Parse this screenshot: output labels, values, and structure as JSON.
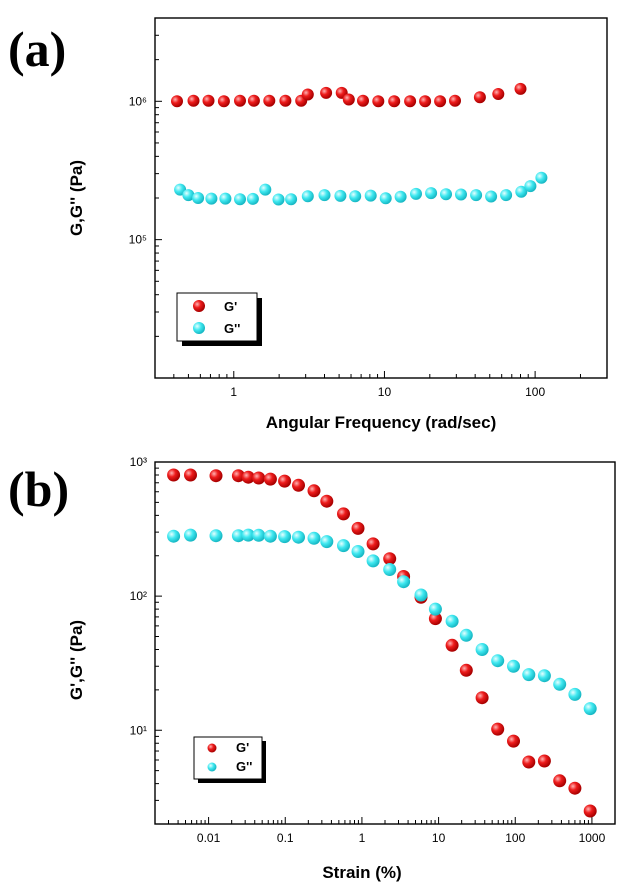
{
  "figure": {
    "panel_labels": [
      "(a)",
      "(b)"
    ]
  },
  "chart_data": [
    {
      "type": "scatter",
      "panel": "(a)",
      "xlabel": "Angular Frequency (rad/sec)",
      "ylabel": "G,G'' (Pa)",
      "xscale": "log",
      "yscale": "log",
      "xlim": [
        0.3,
        300
      ],
      "ylim": [
        10000,
        4000000
      ],
      "xticks": [
        {
          "value": 1,
          "label": "1"
        },
        {
          "value": 10,
          "label": "10"
        },
        {
          "value": 100,
          "label": "100"
        }
      ],
      "yticks": [
        {
          "value": 100000,
          "label": "10⁵"
        },
        {
          "value": 1000000,
          "label": "10⁶"
        }
      ],
      "grid": false,
      "legend_position": "bottom-left",
      "series": [
        {
          "name": "G'",
          "color": "#ee1c1c",
          "points": [
            [
              0.42,
              1000000
            ],
            [
              0.54,
              1010000
            ],
            [
              0.68,
              1010000
            ],
            [
              0.86,
              1000000
            ],
            [
              1.1,
              1010000
            ],
            [
              1.36,
              1010000
            ],
            [
              1.72,
              1010000
            ],
            [
              2.2,
              1010000
            ],
            [
              2.8,
              1010000
            ],
            [
              3.1,
              1120000
            ],
            [
              4.1,
              1150000
            ],
            [
              5.2,
              1150000
            ],
            [
              5.8,
              1030000
            ],
            [
              7.2,
              1010000
            ],
            [
              9.1,
              1000000
            ],
            [
              11.6,
              1000000
            ],
            [
              14.8,
              1000000
            ],
            [
              18.6,
              1000000
            ],
            [
              23.4,
              1000000
            ],
            [
              29.4,
              1010000
            ],
            [
              43,
              1070000
            ],
            [
              57,
              1130000
            ],
            [
              80,
              1230000
            ]
          ]
        },
        {
          "name": "G''",
          "color": "#3fe8f0",
          "points": [
            [
              0.44,
              230000
            ],
            [
              0.5,
              210000
            ],
            [
              0.58,
              200000
            ],
            [
              0.71,
              198000
            ],
            [
              0.88,
              198000
            ],
            [
              1.1,
              196000
            ],
            [
              1.34,
              197000
            ],
            [
              1.62,
              230000
            ],
            [
              1.98,
              195000
            ],
            [
              2.4,
              196000
            ],
            [
              3.1,
              206000
            ],
            [
              4,
              210000
            ],
            [
              5.1,
              207000
            ],
            [
              6.4,
              206000
            ],
            [
              8.1,
              208000
            ],
            [
              10.2,
              199000
            ],
            [
              12.8,
              204000
            ],
            [
              16.2,
              214000
            ],
            [
              20.4,
              217000
            ],
            [
              25.6,
              213000
            ],
            [
              32.2,
              212000
            ],
            [
              40.6,
              210000
            ],
            [
              51,
              205000
            ],
            [
              64.2,
              210000
            ],
            [
              81,
              222000
            ],
            [
              93,
              244000
            ],
            [
              110,
              280000
            ]
          ]
        }
      ]
    },
    {
      "type": "scatter",
      "panel": "(b)",
      "xlabel": "Strain (%)",
      "ylabel": "G',G'' (Pa)",
      "xscale": "log",
      "yscale": "log",
      "xlim": [
        0.002,
        2000
      ],
      "ylim": [
        2,
        1000
      ],
      "xticks": [
        {
          "value": 0.01,
          "label": "0.01"
        },
        {
          "value": 0.1,
          "label": "0.1"
        },
        {
          "value": 1,
          "label": "1"
        },
        {
          "value": 10,
          "label": "10"
        },
        {
          "value": 100,
          "label": "100"
        },
        {
          "value": 1000,
          "label": "1000"
        }
      ],
      "yticks": [
        {
          "value": 10,
          "label": "10¹"
        },
        {
          "value": 100,
          "label": "10²"
        },
        {
          "value": 1000,
          "label": "10³"
        }
      ],
      "grid": false,
      "legend_position": "bottom-left",
      "series": [
        {
          "name": "G'",
          "color": "#ee1c1c",
          "points": [
            [
              0.0035,
              800
            ],
            [
              0.0058,
              800
            ],
            [
              0.0125,
              790
            ],
            [
              0.0245,
              790
            ],
            [
              0.033,
              770
            ],
            [
              0.045,
              760
            ],
            [
              0.064,
              745
            ],
            [
              0.098,
              720
            ],
            [
              0.149,
              670
            ],
            [
              0.237,
              610
            ],
            [
              0.348,
              510
            ],
            [
              0.575,
              410
            ],
            [
              0.89,
              320
            ],
            [
              1.4,
              245
            ],
            [
              2.3,
              190
            ],
            [
              3.5,
              140
            ],
            [
              5.9,
              98
            ],
            [
              9.1,
              68
            ],
            [
              15,
              43
            ],
            [
              23,
              28
            ],
            [
              37,
              17.5
            ],
            [
              59,
              10.2
            ],
            [
              95,
              8.3
            ],
            [
              150,
              5.8
            ],
            [
              240,
              5.9
            ],
            [
              380,
              4.2
            ],
            [
              600,
              3.7
            ],
            [
              950,
              2.5
            ]
          ]
        },
        {
          "name": "G''",
          "color": "#3fe8f0",
          "points": [
            [
              0.0035,
              280
            ],
            [
              0.0058,
              285
            ],
            [
              0.0125,
              282
            ],
            [
              0.0245,
              282
            ],
            [
              0.033,
              285
            ],
            [
              0.045,
              284
            ],
            [
              0.064,
              280
            ],
            [
              0.098,
              278
            ],
            [
              0.149,
              275
            ],
            [
              0.237,
              270
            ],
            [
              0.348,
              255
            ],
            [
              0.575,
              238
            ],
            [
              0.89,
              215
            ],
            [
              1.4,
              183
            ],
            [
              2.3,
              158
            ],
            [
              3.5,
              128
            ],
            [
              5.9,
              102
            ],
            [
              9.1,
              80
            ],
            [
              15,
              65
            ],
            [
              23,
              51
            ],
            [
              37,
              40
            ],
            [
              59,
              33
            ],
            [
              95,
              30
            ],
            [
              150,
              26
            ],
            [
              240,
              25.5
            ],
            [
              380,
              22
            ],
            [
              600,
              18.5
            ],
            [
              950,
              14.5
            ]
          ]
        }
      ]
    }
  ]
}
